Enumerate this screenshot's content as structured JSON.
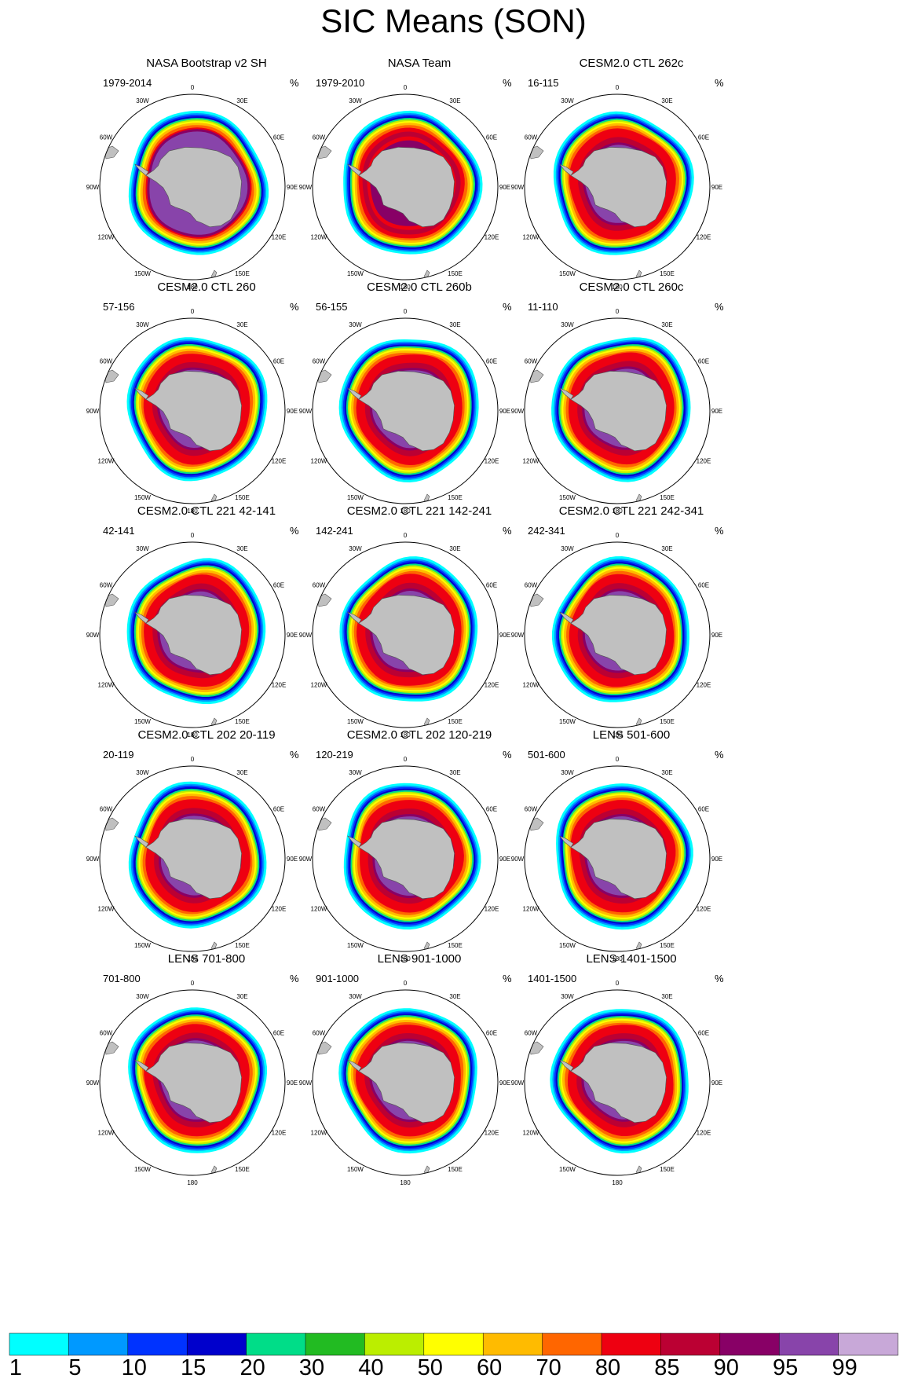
{
  "title": "SIC Means (SON)",
  "panels": [
    {
      "title": "NASA Bootstrap v2 SH",
      "years": "1979-2014",
      "unit": "%",
      "style": "obs-bootstrap"
    },
    {
      "title": "NASA Team",
      "years": "1979-2010",
      "unit": "%",
      "style": "obs-team"
    },
    {
      "title": "CESM2.0 CTL 262c",
      "years": "16-115",
      "unit": "%",
      "style": "model"
    },
    {
      "title": "CESM2.0 CTL 260",
      "years": "57-156",
      "unit": "%",
      "style": "model"
    },
    {
      "title": "CESM2.0 CTL 260b",
      "years": "56-155",
      "unit": "%",
      "style": "model"
    },
    {
      "title": "CESM2.0 CTL 260c",
      "years": "11-110",
      "unit": "%",
      "style": "model"
    },
    {
      "title": "CESM2.0 CTL 221 42-141",
      "years": "42-141",
      "unit": "%",
      "style": "model"
    },
    {
      "title": "CESM2.0 CTL 221 142-241",
      "years": "142-241",
      "unit": "%",
      "style": "model"
    },
    {
      "title": "CESM2.0 CTL 221 242-341",
      "years": "242-341",
      "unit": "%",
      "style": "model"
    },
    {
      "title": "CESM2.0 CTL 202 20-119",
      "years": "20-119",
      "unit": "%",
      "style": "model"
    },
    {
      "title": "CESM2.0 CTL 202 120-219",
      "years": "120-219",
      "unit": "%",
      "style": "model"
    },
    {
      "title": "LENS 501-600",
      "years": "501-600",
      "unit": "%",
      "style": "model"
    },
    {
      "title": "LENS 701-800",
      "years": "701-800",
      "unit": "%",
      "style": "model"
    },
    {
      "title": "LENS 901-1000",
      "years": "901-1000",
      "unit": "%",
      "style": "model"
    },
    {
      "title": "LENS 1401-1500",
      "years": "1401-1500",
      "unit": "%",
      "style": "model"
    }
  ],
  "longitude_labels": [
    "0",
    "30E",
    "60E",
    "90E",
    "120E",
    "150E",
    "180",
    "150W",
    "120W",
    "90W",
    "60W",
    "30W"
  ],
  "colorbar": {
    "levels": [
      "1",
      "5",
      "10",
      "15",
      "20",
      "30",
      "40",
      "50",
      "60",
      "70",
      "80",
      "85",
      "90",
      "95",
      "99"
    ],
    "colors": [
      "#00ffff",
      "#0099ff",
      "#0033ff",
      "#0000cc",
      "#00dd88",
      "#22bb22",
      "#bbee00",
      "#ffff00",
      "#ffbb00",
      "#ff6600",
      "#ee0011",
      "#bb0033",
      "#880066",
      "#8844aa",
      "#c8a8d8"
    ]
  },
  "chart_data": {
    "type": "heatmap",
    "title": "SIC Means (SON)",
    "unit": "%",
    "projection": "south polar stereographic",
    "color_levels": [
      1,
      5,
      10,
      15,
      20,
      30,
      40,
      50,
      60,
      70,
      80,
      85,
      90,
      95,
      99
    ]
  }
}
